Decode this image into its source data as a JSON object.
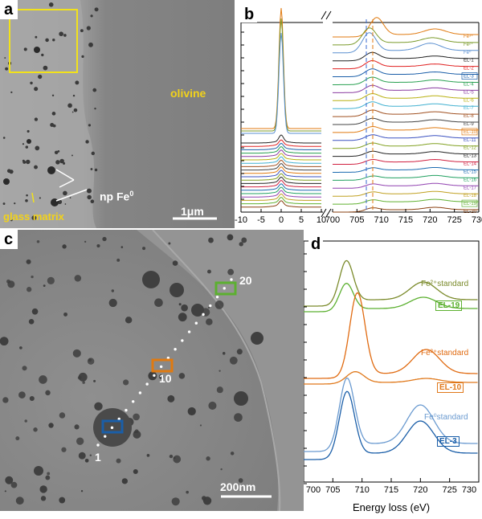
{
  "figure": {
    "panels": [
      "a",
      "b",
      "c",
      "d"
    ],
    "a": {
      "olivine": "olivine",
      "np_label": "np Fe",
      "np_sup": "0",
      "glass": "glass matrix",
      "scale": "1μm"
    },
    "b": {
      "xticks_left": [
        "-10",
        "-5",
        "0",
        "5",
        "10"
      ],
      "xticks_right": [
        "700",
        "705",
        "710",
        "715",
        "720",
        "725",
        "730"
      ],
      "spectra": [
        {
          "name": "Fe³⁺",
          "color": "#e07a10"
        },
        {
          "name": "Fe²⁺",
          "color": "#7a9a2a"
        },
        {
          "name": "Fe⁰",
          "color": "#5a8fd0"
        },
        {
          "name": "EL-1",
          "color": "#222222"
        },
        {
          "name": "EL-2",
          "color": "#e02020"
        },
        {
          "name": "EL-3",
          "color": "#1a5ea8",
          "boxed": true
        },
        {
          "name": "EL-4",
          "color": "#28a050"
        },
        {
          "name": "EL-5",
          "color": "#8a3aa0"
        },
        {
          "name": "EL-6",
          "color": "#b8b010"
        },
        {
          "name": "EL-7",
          "color": "#40b0d0"
        },
        {
          "name": "EL-8",
          "color": "#a05020"
        },
        {
          "name": "EL-9",
          "color": "#444444"
        },
        {
          "name": "EL-10",
          "color": "#e07a10",
          "boxed": true
        },
        {
          "name": "EL-11",
          "color": "#3a50c0"
        },
        {
          "name": "EL-12",
          "color": "#80a020"
        },
        {
          "name": "EL-13",
          "color": "#222222"
        },
        {
          "name": "EL-14",
          "color": "#d02040"
        },
        {
          "name": "EL-15",
          "color": "#1a6ab0"
        },
        {
          "name": "EL-16",
          "color": "#20a060"
        },
        {
          "name": "EL-17",
          "color": "#9040b0"
        },
        {
          "name": "EL-18",
          "color": "#c0a020"
        },
        {
          "name": "EL-19",
          "color": "#60b030",
          "boxed": true
        },
        {
          "name": "EL-20",
          "color": "#8a4010"
        }
      ]
    },
    "c": {
      "label_20": "20",
      "label_10": "10",
      "label_1": "1",
      "scale": "200nm"
    },
    "d": {
      "xticks": [
        "700",
        "705",
        "710",
        "715",
        "720",
        "725",
        "730"
      ],
      "xlabel": "Energy loss (eV)",
      "std_fe2": "Fe²⁺standard",
      "std_fe3": "Fe³⁺standard",
      "std_fe0": "Fe⁰standard",
      "el19": "EL-19",
      "el10": "EL-10",
      "el3": "EL-3",
      "colors": {
        "fe2": "#7a8a2a",
        "el19": "#5cb030",
        "fe3": "#e06a10",
        "el10": "#e0781a",
        "fe0": "#6a9ad0",
        "el3": "#1a5ea8"
      }
    }
  }
}
